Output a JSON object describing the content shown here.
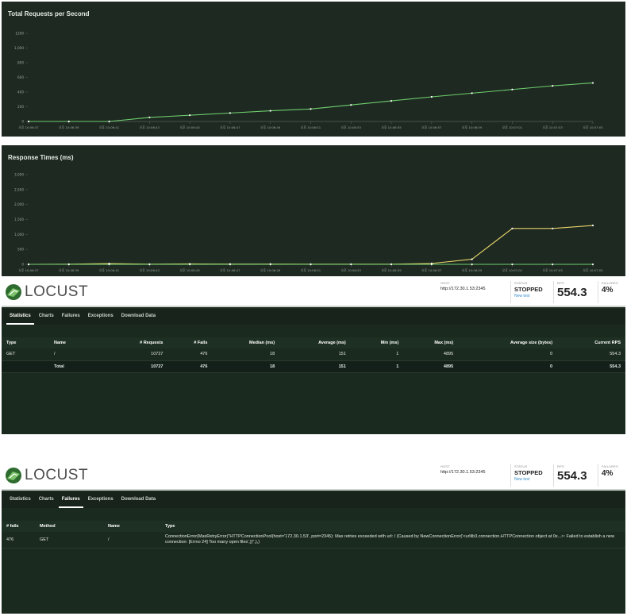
{
  "charts": {
    "rps": {
      "title": "Total Requests per Second",
      "y_ticks": [
        "1200",
        "1,000",
        "800",
        "600",
        "400",
        "200",
        "0"
      ]
    },
    "response": {
      "title": "Response Times (ms)",
      "y_ticks": [
        "3,000",
        "2,500",
        "2,000",
        "1,500",
        "1,000",
        "500",
        "0"
      ]
    },
    "x_ticks": [
      "오후 10:06:37",
      "오후 10:06:39",
      "오후 10:06:41",
      "오후 10:06:43",
      "오후 10:06:45",
      "오후 10:06:47",
      "오후 10:06:49",
      "오후 10:06:51",
      "오후 10:06:53",
      "오후 10:06:55",
      "오후 10:06:57",
      "오후 10:06:59",
      "오후 10:07:01",
      "오후 10:07:03",
      "오후 10:07:05"
    ]
  },
  "chart_data": [
    {
      "type": "line",
      "title": "Total Requests per Second",
      "x": [
        "오후 10:06:37",
        "오후 10:06:39",
        "오후 10:06:41",
        "오후 10:06:43",
        "오후 10:06:45",
        "오후 10:06:47",
        "오후 10:06:49",
        "오후 10:06:51",
        "오후 10:06:53",
        "오후 10:06:55",
        "오후 10:06:57",
        "오후 10:06:59",
        "오후 10:07:01",
        "오후 10:07:03",
        "오후 10:07:05"
      ],
      "ylim": [
        0,
        1200
      ],
      "grid": false,
      "series": [
        {
          "color": "#6fcf6f",
          "values": [
            0,
            0,
            0,
            55,
            85,
            115,
            145,
            170,
            225,
            280,
            335,
            385,
            435,
            485,
            525
          ]
        }
      ]
    },
    {
      "type": "line",
      "title": "Response Times (ms)",
      "x": [
        "오후 10:06:37",
        "오후 10:06:39",
        "오후 10:06:41",
        "오후 10:06:43",
        "오후 10:06:45",
        "오후 10:06:47",
        "오후 10:06:49",
        "오후 10:06:51",
        "오후 10:06:53",
        "오후 10:06:55",
        "오후 10:06:57",
        "오후 10:06:59",
        "오후 10:07:01",
        "오후 10:07:03",
        "오후 10:07:05"
      ],
      "ylim": [
        0,
        3000
      ],
      "grid": false,
      "series": [
        {
          "color": "#e6d36a",
          "values": [
            0,
            5,
            25,
            5,
            15,
            10,
            10,
            5,
            5,
            5,
            30,
            170,
            1200,
            1200,
            1300
          ]
        },
        {
          "color": "#6fcf6f",
          "values": [
            0,
            0,
            0,
            0,
            0,
            0,
            0,
            0,
            0,
            0,
            0,
            0,
            0,
            0,
            0
          ]
        }
      ]
    }
  ],
  "header": {
    "logo_text": "LOCUST",
    "host_label": "HOST",
    "host": "http://172.30.1.53:2345",
    "status_label": "STATUS",
    "status": "STOPPED",
    "new_test": "New test",
    "rps_label": "RPS",
    "rps": "554.3",
    "failures_label": "FAILURES",
    "failures": "4%"
  },
  "tabs": [
    "Statistics",
    "Charts",
    "Failures",
    "Exceptions",
    "Download Data"
  ],
  "stats": {
    "columns": [
      "Type",
      "Name",
      "# Requests",
      "# Fails",
      "Median (ms)",
      "Average (ms)",
      "Min (ms)",
      "Max (ms)",
      "Average size (bytes)",
      "Current RPS"
    ],
    "rows": [
      [
        "GET",
        "/",
        "10727",
        "476",
        "18",
        "151",
        "1",
        "4895",
        "0",
        "554.3"
      ],
      [
        "",
        "Total",
        "10727",
        "476",
        "18",
        "151",
        "1",
        "4895",
        "0",
        "554.3"
      ]
    ]
  },
  "failures": {
    "columns": [
      "# fails",
      "Method",
      "Name",
      "Type"
    ],
    "rows": [
      [
        "476",
        "GET",
        "/",
        "ConnectionError(MaxRetryError(\"HTTPConnectionPool(host='172.30.1.53', port=2345): Max retries exceeded with url: / (Caused by NewConnectionError('<urllib3.connection.HTTPConnection object at 0x...>: Failed to establish a new connection: [Errno 24] Too many open files',))\",),)"
      ]
    ]
  }
}
